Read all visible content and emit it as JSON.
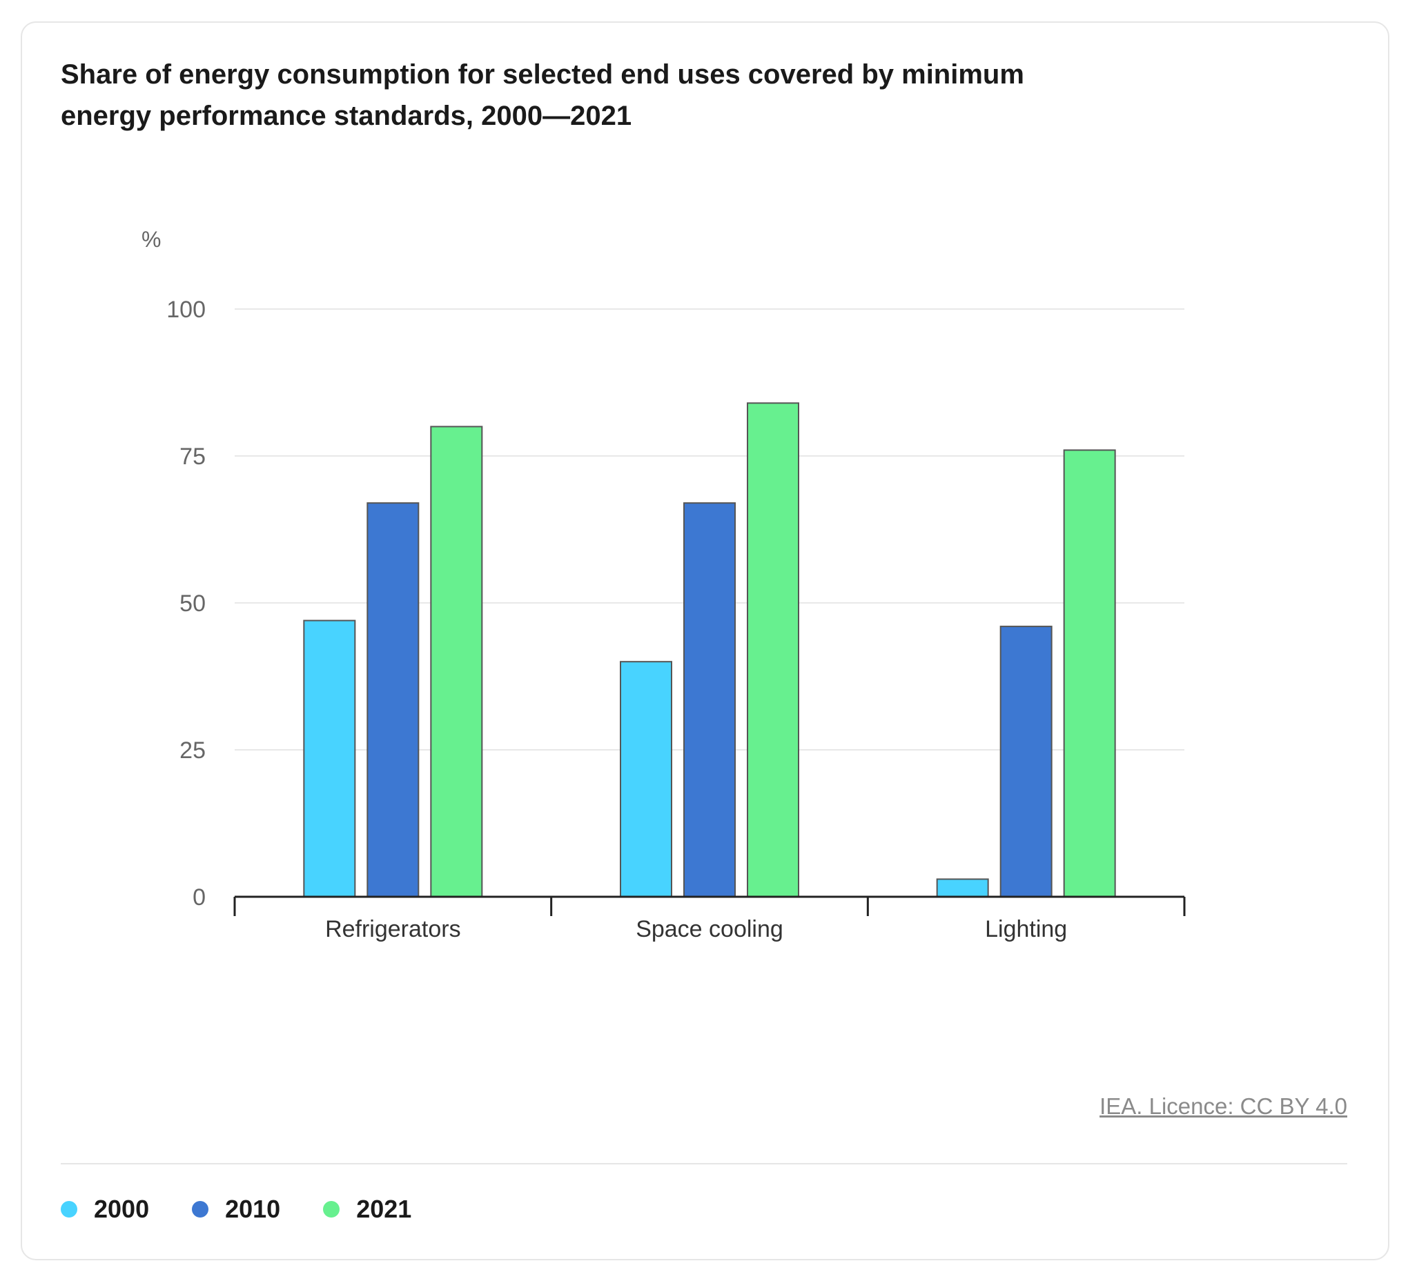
{
  "title": "Share of energy consumption for selected end uses covered by minimum energy performance standards, 2000—2021",
  "licence": "IEA. Licence: CC BY 4.0",
  "legend": [
    {
      "label": "2000",
      "color": "#48d3ff"
    },
    {
      "label": "2010",
      "color": "#3d78d2"
    },
    {
      "label": "2021",
      "color": "#67f08f"
    }
  ],
  "chart_data": {
    "type": "bar",
    "title": "Share of energy consumption for selected end uses covered by minimum energy performance standards, 2000—2021",
    "ylabel": "%",
    "xlabel": "",
    "ylim": [
      0,
      100
    ],
    "yticks": [
      0,
      25,
      50,
      75,
      100
    ],
    "grid": true,
    "legend_position": "bottom",
    "categories": [
      "Refrigerators",
      "Space cooling",
      "Lighting"
    ],
    "series": [
      {
        "name": "2000",
        "color": "#48d3ff",
        "values": [
          47,
          40,
          3
        ]
      },
      {
        "name": "2010",
        "color": "#3d78d2",
        "values": [
          67,
          67,
          46
        ]
      },
      {
        "name": "2021",
        "color": "#67f08f",
        "values": [
          80,
          84,
          76
        ]
      }
    ]
  }
}
